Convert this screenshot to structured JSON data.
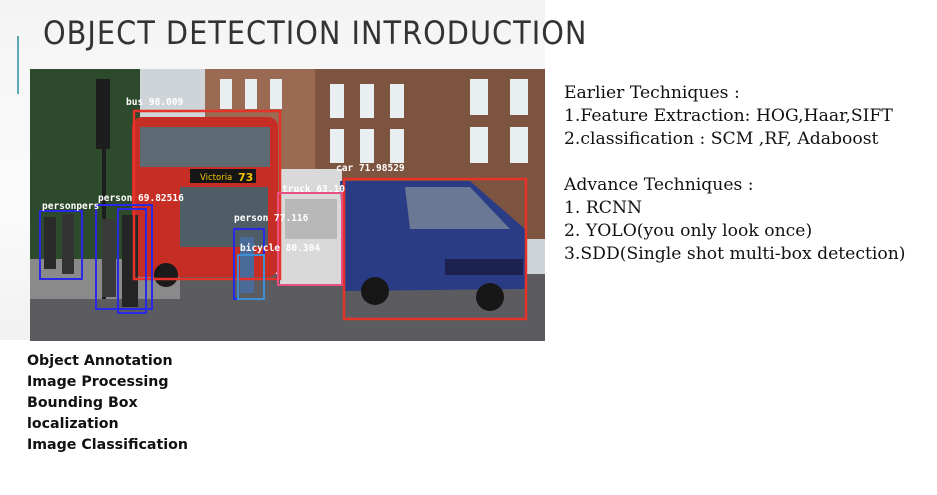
{
  "slide": {
    "title": "OBJECT DETECTION INTRODUCTION",
    "accent_color": "#5fa8b8"
  },
  "photo": {
    "description_icon": "street-scene-image",
    "detections": [
      {
        "label": "bus 98.009",
        "color": "#e6332a"
      },
      {
        "label": "car 71.98529",
        "color": "#e6332a"
      },
      {
        "label": "truck 63.10",
        "color": "#e6332a"
      },
      {
        "label": "person 69.82516",
        "color": "#2a2ae6"
      },
      {
        "label": "person 77.116",
        "color": "#2a2ae6"
      },
      {
        "label": "bicycle 80.304",
        "color": "#3b8fd6"
      },
      {
        "label": "personpers",
        "color": "#2a2ae6"
      }
    ],
    "bus_sign": "Victoria",
    "bus_number": "73"
  },
  "keywords": [
    "Object Annotation",
    "Image Processing",
    "Bounding Box",
    "localization",
    "Image Classification"
  ],
  "techniques": {
    "earlier_heading": "Earlier Techniques :",
    "earlier": [
      "1.Feature Extraction: HOG,Haar,SIFT",
      "2.classification : SCM ,RF, Adaboost"
    ],
    "advance_heading": "Advance Techniques :",
    "advance": [
      "1. RCNN",
      "2. YOLO(you only look once)",
      "3.SDD(Single shot multi-box detection)"
    ]
  }
}
